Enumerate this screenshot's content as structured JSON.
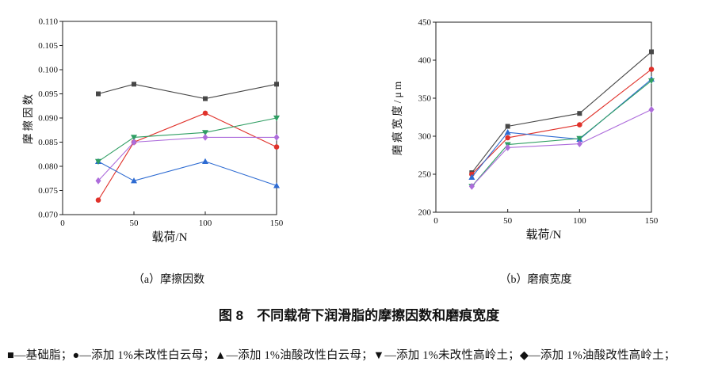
{
  "figure": {
    "caption": "图 8　不同载荷下润滑脂的摩擦因数和磨痕宽度",
    "sub_caption_a": "（a）摩擦因数",
    "sub_caption_b": "（b）磨痕宽度",
    "legend_line": "■—基础脂；●—添加 1%未改性白云母；▲—添加 1%油酸改性白云母；▼—添加 1%未改性高岭土；◆—添加 1%油酸改性高岭土；"
  },
  "chart_data": [
    {
      "id": "a",
      "type": "line",
      "subtitle": "（a）摩擦因数",
      "xlabel": "载荷/N",
      "ylabel": "摩擦因数",
      "x": [
        25,
        50,
        100,
        150
      ],
      "xlim": [
        0,
        150
      ],
      "xticks": [
        0,
        50,
        100,
        150
      ],
      "xtick_labels": [
        "0",
        "50",
        "100",
        "150"
      ],
      "ylim": [
        0.07,
        0.11
      ],
      "yticks": [
        0.07,
        0.075,
        0.08,
        0.085,
        0.09,
        0.095,
        0.1,
        0.105,
        0.11
      ],
      "ytick_labels": [
        "0.070",
        "0.075",
        "0.080",
        "0.085",
        "0.090",
        "0.095",
        "0.100",
        "0.105",
        "0.110"
      ],
      "grid": false,
      "legend_position": "none",
      "series": [
        {
          "key": "base-grease",
          "name": "基础脂",
          "marker": "square",
          "color": "#474747",
          "values": [
            0.095,
            0.097,
            0.094,
            0.097
          ]
        },
        {
          "key": "unmodified-mica",
          "name": "添加1%未改性白云母",
          "marker": "circle",
          "color": "#e0322b",
          "values": [
            0.073,
            0.085,
            0.091,
            0.084
          ]
        },
        {
          "key": "oleic-modified-mica",
          "name": "添加1%油酸改性白云母",
          "marker": "triangle-up",
          "color": "#2d6bd2",
          "values": [
            0.081,
            0.077,
            0.081,
            0.076
          ]
        },
        {
          "key": "unmodified-kaolin",
          "name": "添加1%未改性高岭土",
          "marker": "triangle-down",
          "color": "#2f9e63",
          "values": [
            0.081,
            0.086,
            0.087,
            0.09
          ]
        },
        {
          "key": "oleic-modified-kaolin",
          "name": "添加1%油酸改性高岭土",
          "marker": "diamond",
          "color": "#ad6cdb",
          "values": [
            0.077,
            0.085,
            0.086,
            0.086
          ]
        }
      ]
    },
    {
      "id": "b",
      "type": "line",
      "subtitle": "（b）磨痕宽度",
      "xlabel": "载荷/N",
      "ylabel": "磨痕宽度/μm",
      "x": [
        25,
        50,
        100,
        150
      ],
      "xlim": [
        0,
        150
      ],
      "xticks": [
        0,
        50,
        100,
        150
      ],
      "xtick_labels": [
        "0",
        "50",
        "100",
        "150"
      ],
      "ylim": [
        200,
        450
      ],
      "yticks": [
        200,
        250,
        300,
        350,
        400,
        450
      ],
      "ytick_labels": [
        "200",
        "250",
        "300",
        "350",
        "400",
        "450"
      ],
      "grid": false,
      "legend_position": "none",
      "series": [
        {
          "key": "base-grease",
          "name": "基础脂",
          "marker": "square",
          "color": "#474747",
          "values": [
            252,
            313,
            330,
            411
          ]
        },
        {
          "key": "unmodified-mica",
          "name": "添加1%未改性白云母",
          "marker": "circle",
          "color": "#e0322b",
          "values": [
            250,
            298,
            315,
            388
          ]
        },
        {
          "key": "oleic-modified-mica",
          "name": "添加1%油酸改性白云母",
          "marker": "triangle-up",
          "color": "#2d6bd2",
          "values": [
            246,
            305,
            296,
            375
          ]
        },
        {
          "key": "unmodified-kaolin",
          "name": "添加1%未改性高岭土",
          "marker": "triangle-down",
          "color": "#2f9e63",
          "values": [
            234,
            289,
            297,
            373
          ]
        },
        {
          "key": "oleic-modified-kaolin",
          "name": "添加1%油酸改性高岭土",
          "marker": "diamond",
          "color": "#ad6cdb",
          "values": [
            234,
            285,
            290,
            335
          ]
        }
      ]
    }
  ]
}
